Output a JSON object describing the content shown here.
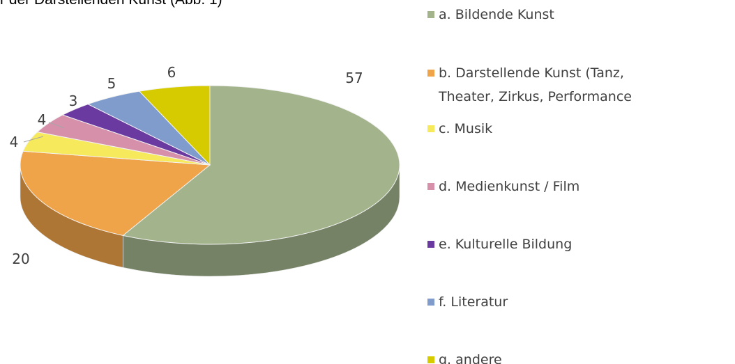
{
  "chart_data": {
    "type": "pie",
    "title": "r der Darstellenden Kunst (Abb. 1)",
    "categories": [
      "a. Bildende Kunst",
      "b. Darstellende Kunst (Tanz, Theater, Zirkus, Performance",
      "c. Musik",
      "d. Medienkunst / Film",
      "e. Kulturelle Bildung",
      "f. Literatur",
      "g. andere"
    ],
    "values": [
      57,
      20,
      4,
      4,
      3,
      5,
      6
    ],
    "colors": [
      "#a3b48c",
      "#f0a44a",
      "#f6ea5c",
      "#d690aa",
      "#6b3aa1",
      "#7f9ccc",
      "#d6cb00"
    ]
  }
}
